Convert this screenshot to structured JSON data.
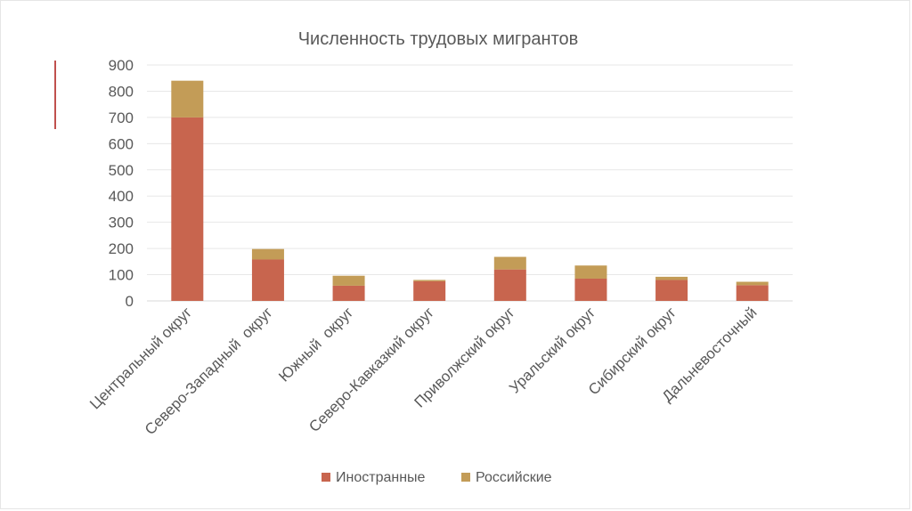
{
  "chart_data": {
    "type": "bar",
    "stacked": true,
    "title": "Численность трудовых мигрантов",
    "categories": [
      "Центральный округ",
      "Северо-Западный  округ",
      "Южный  округ",
      "Северо-Кавказкий округ",
      "Приволжский округ",
      "Уральский округ",
      "Сибирский округ",
      "Дальневосточный"
    ],
    "series": [
      {
        "name": "Иностранные",
        "color": "#c8654e",
        "values": [
          700,
          158,
          58,
          75,
          120,
          85,
          80,
          60
        ]
      },
      {
        "name": "Российские",
        "color": "#c39c57",
        "values": [
          140,
          40,
          38,
          5,
          48,
          50,
          12,
          13
        ]
      }
    ],
    "ylim": [
      0,
      900
    ],
    "yticks": [
      0,
      100,
      200,
      300,
      400,
      500,
      600,
      700,
      800,
      900
    ],
    "grid": true,
    "legend": "bottom"
  }
}
